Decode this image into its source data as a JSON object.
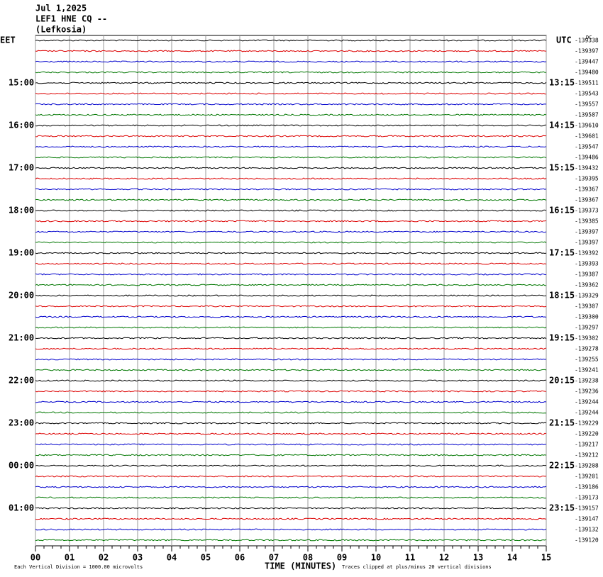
{
  "header": {
    "date": "Jul 1,2025",
    "station": "LEF1 HNE CQ --",
    "place": "(Lefkosia)"
  },
  "left_zone": "EET",
  "right_zone": "UTC",
  "corner_note": "DC",
  "left_times": [
    "15:00",
    "16:00",
    "17:00",
    "18:00",
    "19:00",
    "20:00",
    "21:00",
    "22:00",
    "23:00",
    "00:00",
    "01:00"
  ],
  "right_times": [
    "13:15",
    "14:15",
    "15:15",
    "16:15",
    "17:15",
    "18:15",
    "19:15",
    "20:15",
    "21:15",
    "22:15",
    "23:15"
  ],
  "trace_levels": [
    "-139338",
    "-139397",
    "-139447",
    "-139480",
    "-139511",
    "-139543",
    "-139557",
    "-139587",
    "-139610",
    "-139601",
    "-139547",
    "-139486",
    "-139432",
    "-139395",
    "-139367",
    "-139367",
    "-139373",
    "-139385",
    "-139397",
    "-139397",
    "-139392",
    "-139393",
    "-139387",
    "-139362",
    "-139329",
    "-139307",
    "-139300",
    "-139297",
    "-139302",
    "-139278",
    "-139255",
    "-139241",
    "-139238",
    "-139236",
    "-139244",
    "-139244",
    "-139229",
    "-139220",
    "-139217",
    "-139212",
    "-139208",
    "-139201",
    "-139186",
    "-139173",
    "-139157",
    "-139147",
    "-139132",
    "-139120"
  ],
  "trace_colors": [
    "#000000",
    "#dd0000",
    "#0000cc",
    "#007700"
  ],
  "x_ticks": [
    "00",
    "01",
    "02",
    "03",
    "04",
    "05",
    "06",
    "07",
    "08",
    "09",
    "10",
    "11",
    "12",
    "13",
    "14",
    "15"
  ],
  "x_title": "TIME (MINUTES)",
  "scale_note": "Each Vertical Division = 1000.00 microvolts",
  "clip_note": "Traces clipped at plus/minus 20 vertical divisions"
}
